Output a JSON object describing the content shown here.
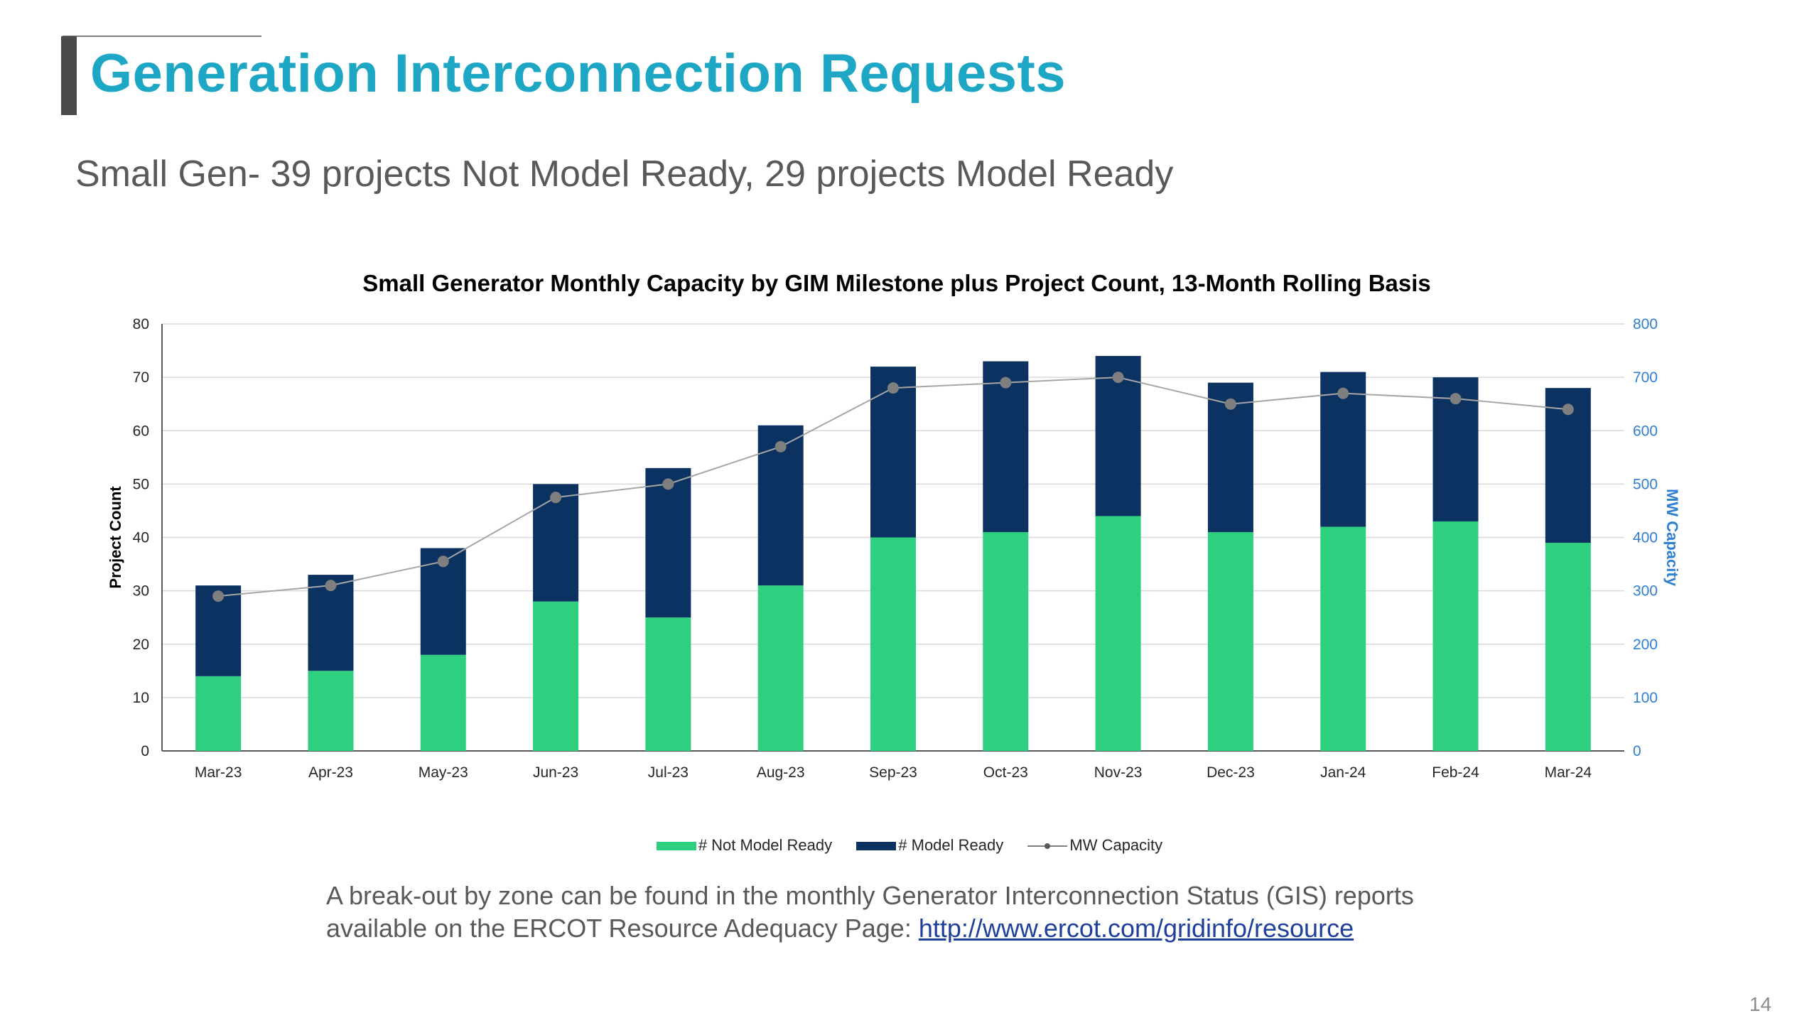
{
  "slide": {
    "title": "Generation Interconnection Requests",
    "subtitle": "Small Gen- 39 projects Not Model Ready, 29 projects Model Ready",
    "note_text": "A break-out by zone can be found in the monthly Generator Interconnection Status (GIS) reports",
    "note_text2": "available on the ERCOT Resource Adequacy Page: ",
    "note_link": "http://www.ercot.com/gridinfo/resource",
    "page_number": "14"
  },
  "colors": {
    "title": "#1ea7c5",
    "not_model_ready": "#2ecf7e",
    "model_ready": "#0b3260",
    "capacity_line": "#a6a6a6",
    "capacity_marker": "#7f7f7f",
    "secondary_axis": "#2f7fd0"
  },
  "chart_data": {
    "type": "bar",
    "title": "Small Generator Monthly Capacity by GIM Milestone plus Project Count, 13-Month Rolling Basis",
    "stacked": true,
    "categories": [
      "Mar-23",
      "Apr-23",
      "May-23",
      "Jun-23",
      "Jul-23",
      "Aug-23",
      "Sep-23",
      "Oct-23",
      "Nov-23",
      "Dec-23",
      "Jan-24",
      "Feb-24",
      "Mar-24"
    ],
    "series": [
      {
        "name": "# Not Model Ready",
        "type": "bar",
        "axis": "left",
        "values": [
          14,
          15,
          18,
          28,
          25,
          31,
          40,
          41,
          44,
          41,
          42,
          43,
          39
        ]
      },
      {
        "name": "# Model Ready",
        "type": "bar",
        "axis": "left",
        "values": [
          17,
          18,
          20,
          22,
          28,
          30,
          32,
          32,
          30,
          28,
          29,
          27,
          29
        ]
      },
      {
        "name": "MW Capacity",
        "type": "line",
        "axis": "right",
        "values": [
          290,
          310,
          355,
          475,
          500,
          570,
          680,
          690,
          700,
          650,
          670,
          660,
          640
        ]
      }
    ],
    "ylabel": "Project Count",
    "y2label": "MW Capacity",
    "ylim": [
      0,
      80
    ],
    "y2lim": [
      0,
      800
    ],
    "yticks": [
      "0",
      "10",
      "20",
      "30",
      "40",
      "50",
      "60",
      "70",
      "80"
    ],
    "y2ticks": [
      "0",
      "100",
      "200",
      "300",
      "400",
      "500",
      "600",
      "700",
      "800"
    ],
    "grid": true,
    "legend": "bottom"
  }
}
